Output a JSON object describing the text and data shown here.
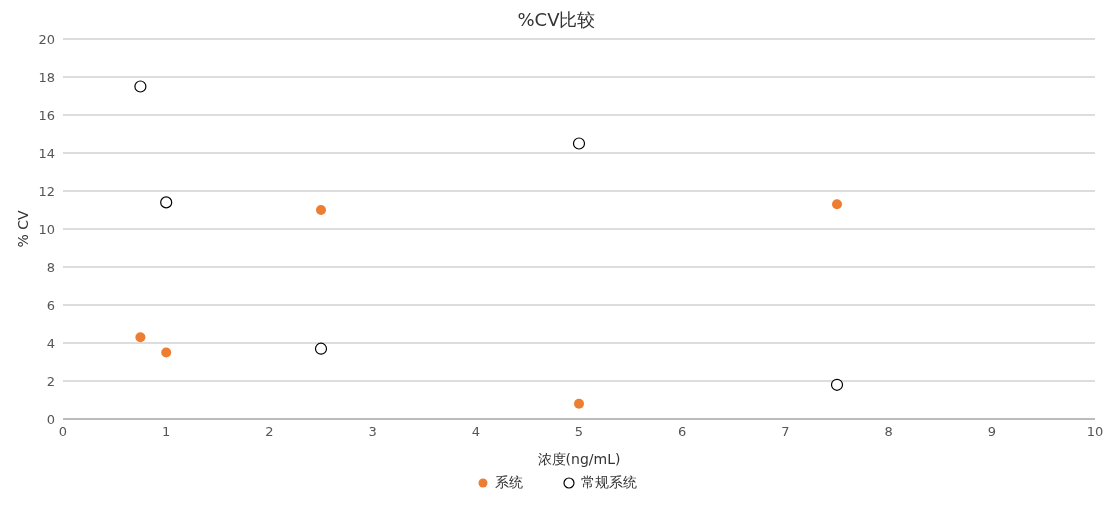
{
  "chart_data": {
    "type": "scatter",
    "title": "%CV比较",
    "xlabel": "浓度(ng/mL)",
    "ylabel": "% CV",
    "xlim": [
      0,
      10
    ],
    "xticks": [
      0,
      1,
      2,
      3,
      4,
      5,
      6,
      7,
      8,
      9,
      10
    ],
    "ylim": [
      0,
      20
    ],
    "yticks": [
      0,
      2,
      4,
      6,
      8,
      10,
      12,
      14,
      16,
      18,
      20
    ],
    "grid": "y",
    "legend": "bottom",
    "marker": "circle",
    "series": [
      {
        "name": "系统",
        "color": "#ed7d31",
        "x": [
          0.75,
          1,
          2.5,
          5,
          7.5
        ],
        "values": [
          4.3,
          3.5,
          11.0,
          0.8,
          11.3
        ]
      },
      {
        "name": "常规系统",
        "color": "#000000",
        "x": [
          0.75,
          1,
          2.5,
          5,
          7.5
        ],
        "values": [
          17.5,
          11.4,
          3.7,
          14.5,
          1.8
        ]
      }
    ]
  }
}
